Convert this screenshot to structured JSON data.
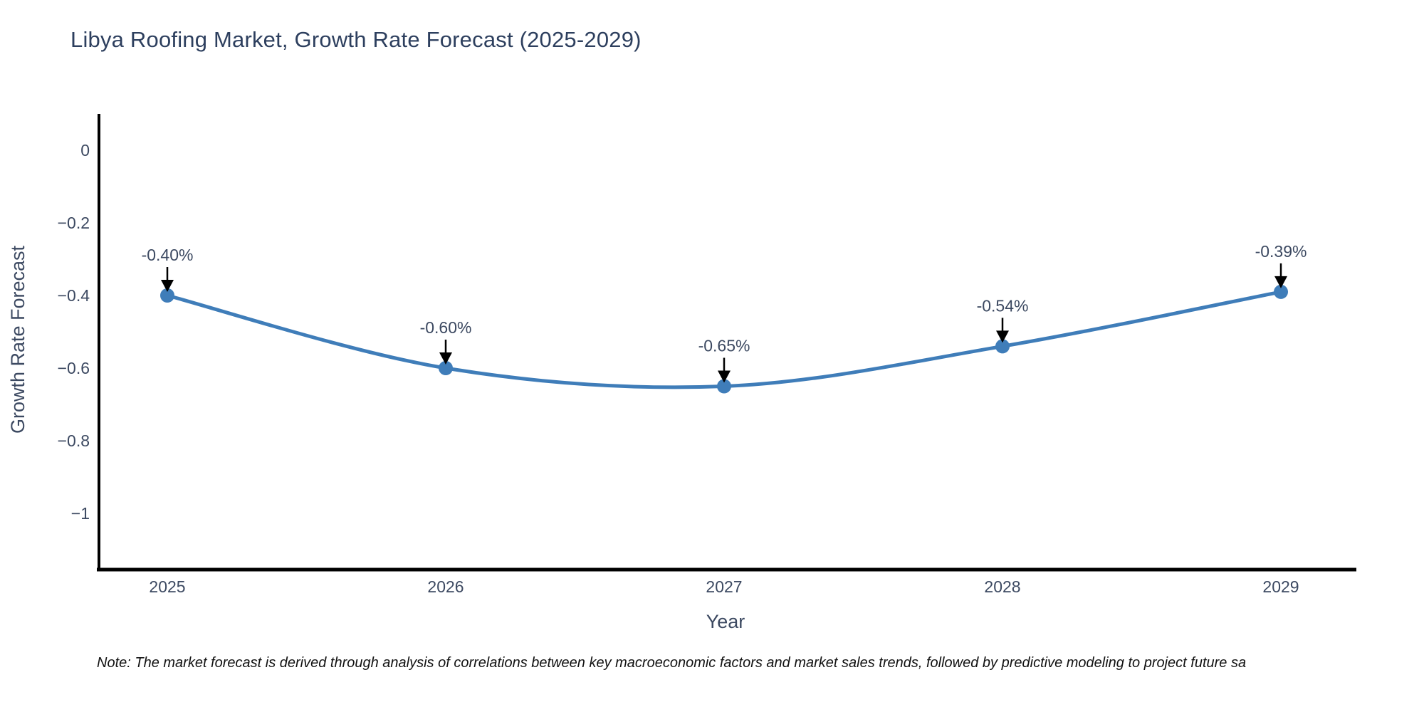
{
  "title": "Libya Roofing Market, Growth Rate Forecast (2025-2029)",
  "note": "Note: The market forecast is derived through analysis of correlations between key macroeconomic factors and market sales trends, followed by predictive modeling to project future sa",
  "chart_data": {
    "type": "line",
    "title": "Libya Roofing Market, Growth Rate Forecast (2025-2029)",
    "xlabel": "Year",
    "ylabel": "Growth Rate Forecast",
    "x": [
      2025,
      2026,
      2027,
      2028,
      2029
    ],
    "xtick_labels": [
      "2025",
      "2026",
      "2027",
      "2028",
      "2029"
    ],
    "series": [
      {
        "name": "Growth Rate Forecast",
        "values": [
          -0.4,
          -0.6,
          -0.65,
          -0.54,
          -0.39
        ],
        "point_labels": [
          "-0.40%",
          "-0.60%",
          "-0.65%",
          "-0.54%",
          "-0.39%"
        ]
      }
    ],
    "ytick_values": [
      0,
      -0.2,
      -0.4,
      -0.6,
      -0.8,
      -1
    ],
    "ytick_labels": [
      "0",
      "−0.2",
      "−0.4",
      "−0.6",
      "−0.8",
      "−1"
    ],
    "ylim": [
      -1.16,
      0.1
    ],
    "grid": false,
    "legend": "none",
    "line_shape": "spline",
    "annotations": "value labels above each point with downward black arrows",
    "colors": {
      "line": "#3f7db9",
      "marker": "#3f7db9",
      "axis": "#000000",
      "title": "#2d3f5e",
      "tick": "#3c4961",
      "annotation_text": "#3c4961",
      "arrow": "#000000",
      "note": "#111111",
      "background": "#ffffff"
    }
  }
}
